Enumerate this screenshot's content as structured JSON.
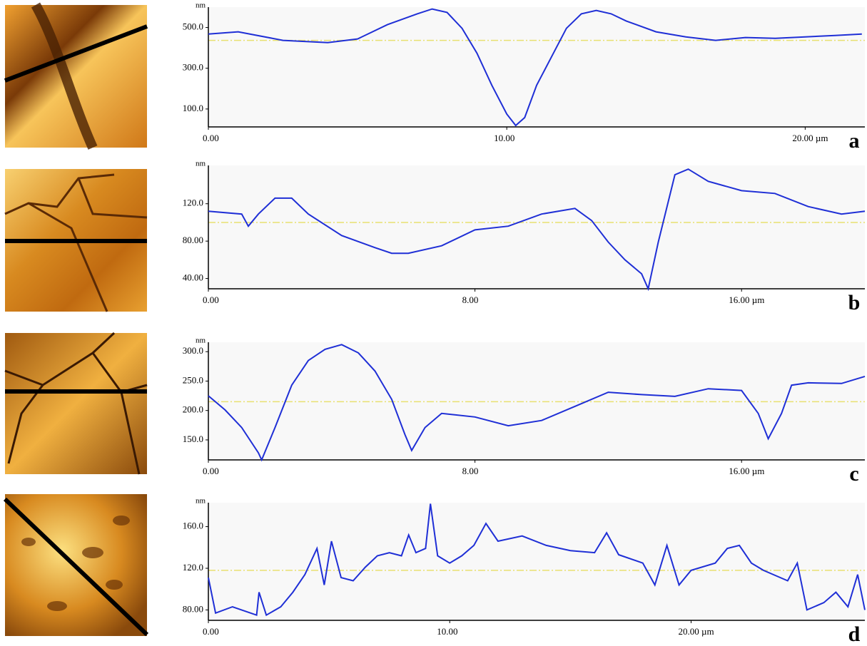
{
  "chart_data": [
    {
      "type": "line",
      "label": "a",
      "ylabel": "nm",
      "color": "#1f2fd6",
      "reference_line": 437,
      "reference_color": "#e8e070",
      "xlim": [
        0,
        22
      ],
      "ylim": [
        12,
        600
      ],
      "xticks": [
        {
          "value": 0,
          "label": "0.00"
        },
        {
          "value": 10,
          "label": "10.00"
        },
        {
          "value": 20,
          "label": "20.00 µm"
        }
      ],
      "yticks": [
        {
          "value": 500,
          "label": "500.0"
        },
        {
          "value": 300,
          "label": "300.0"
        },
        {
          "value": 100,
          "label": "100.0"
        }
      ],
      "x": [
        0,
        1,
        2.5,
        4,
        5,
        6,
        7,
        7.5,
        8,
        8.5,
        9,
        9.5,
        10,
        10.3,
        10.6,
        11,
        11.5,
        12,
        12.5,
        13,
        13.5,
        14,
        15,
        16,
        17,
        18,
        19,
        20,
        21,
        21.9
      ],
      "values": [
        468,
        479,
        437,
        426,
        444,
        514,
        567,
        591,
        574,
        496,
        374,
        216,
        75,
        19,
        58,
        216,
        356,
        496,
        567,
        584,
        567,
        532,
        479,
        454,
        437,
        451,
        447,
        454,
        461,
        468
      ]
    },
    {
      "type": "line",
      "label": "b",
      "ylabel": "nm",
      "color": "#1f2fd6",
      "reference_line": 100,
      "reference_color": "#e8e070",
      "xlim": [
        0,
        19.7
      ],
      "ylim": [
        29,
        161
      ],
      "xticks": [
        {
          "value": 0,
          "label": "0.00"
        },
        {
          "value": 8,
          "label": "8.00"
        },
        {
          "value": 16,
          "label": "16.00 µm"
        }
      ],
      "yticks": [
        {
          "value": 120,
          "label": "120.0"
        },
        {
          "value": 80,
          "label": "80.00"
        },
        {
          "value": 40,
          "label": "40.00"
        }
      ],
      "x": [
        0,
        1,
        1.2,
        1.5,
        2,
        2.5,
        3,
        4,
        5,
        5.5,
        6,
        7,
        8,
        9,
        10,
        11,
        11.5,
        12,
        12.5,
        13,
        13.2,
        13.5,
        14,
        14.4,
        15,
        16,
        17,
        18,
        19,
        19.7
      ],
      "values": [
        112,
        109,
        96,
        109,
        126,
        126,
        109,
        86,
        73,
        67,
        67,
        75,
        92,
        96,
        109,
        115,
        102,
        79,
        60,
        45,
        29,
        79,
        151,
        157,
        144,
        134,
        131,
        117,
        109,
        112
      ]
    },
    {
      "type": "line",
      "label": "c",
      "ylabel": "nm",
      "color": "#1f2fd6",
      "reference_line": 215,
      "reference_color": "#e8e070",
      "xlim": [
        0,
        19.7
      ],
      "ylim": [
        116,
        316
      ],
      "xticks": [
        {
          "value": 0,
          "label": "0.00"
        },
        {
          "value": 8,
          "label": "8.00"
        },
        {
          "value": 16,
          "label": "16.00 µm"
        }
      ],
      "yticks": [
        {
          "value": 300,
          "label": "300.0"
        },
        {
          "value": 250,
          "label": "250.0"
        },
        {
          "value": 200,
          "label": "200.0"
        },
        {
          "value": 150,
          "label": "150.0"
        }
      ],
      "x": [
        0,
        0.5,
        1,
        1.5,
        1.6,
        2,
        2.5,
        3,
        3.5,
        4,
        4.5,
        5,
        5.5,
        5.9,
        6.1,
        6.5,
        7,
        8,
        9,
        10,
        11,
        12,
        13,
        14,
        15,
        16,
        16.5,
        16.8,
        17.2,
        17.5,
        18,
        19,
        19.7
      ],
      "values": [
        225,
        201,
        171,
        128,
        116,
        171,
        243,
        285,
        304,
        312,
        298,
        267,
        219,
        159,
        132,
        171,
        195,
        189,
        174,
        183,
        207,
        231,
        227,
        224,
        237,
        234,
        195,
        152,
        195,
        243,
        247,
        246,
        258
      ]
    },
    {
      "type": "line",
      "label": "d",
      "ylabel": "nm",
      "color": "#1f2fd6",
      "reference_line": 118,
      "reference_color": "#e8e070",
      "xlim": [
        0,
        27.2
      ],
      "ylim": [
        70,
        183
      ],
      "xticks": [
        {
          "value": 0,
          "label": "0.00"
        },
        {
          "value": 10,
          "label": "10.00"
        },
        {
          "value": 20,
          "label": "20.00 µm"
        }
      ],
      "yticks": [
        {
          "value": 160,
          "label": "160.0"
        },
        {
          "value": 120,
          "label": "120.0"
        },
        {
          "value": 80,
          "label": "80.00"
        }
      ],
      "x": [
        0,
        0.3,
        1,
        2,
        2.1,
        2.4,
        3,
        3.5,
        4,
        4.5,
        4.8,
        5.1,
        5.5,
        6,
        6.5,
        7,
        7.5,
        8,
        8.3,
        8.6,
        9,
        9.2,
        9.5,
        10,
        10.5,
        11,
        11.5,
        12,
        13,
        14,
        15,
        16,
        16.5,
        17,
        18,
        18.5,
        19,
        19.5,
        20,
        21,
        21.5,
        22,
        22.5,
        23,
        24,
        24.4,
        24.8,
        25.5,
        26,
        26.5,
        26.9,
        27.2
      ],
      "values": [
        111,
        77,
        83,
        75,
        97,
        75,
        83,
        97,
        114,
        139,
        104,
        146,
        111,
        108,
        121,
        132,
        135,
        132,
        152,
        135,
        139,
        182,
        132,
        125,
        132,
        142,
        163,
        146,
        151,
        142,
        137,
        135,
        154,
        133,
        125,
        104,
        142,
        104,
        118,
        125,
        139,
        142,
        125,
        118,
        108,
        125,
        80,
        87,
        97,
        83,
        114,
        80
      ]
    }
  ]
}
